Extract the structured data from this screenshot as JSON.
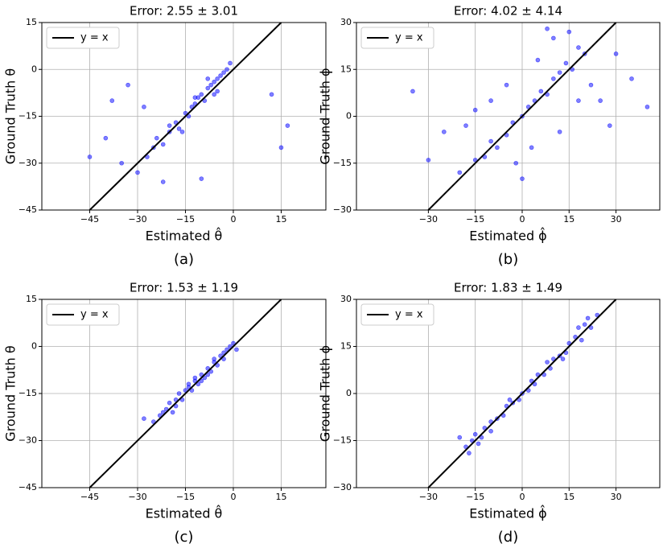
{
  "chart_data": [
    {
      "type": "scatter",
      "title": "Error: 2.55 ± 3.01",
      "xlabel": "Estimated  θ̂",
      "ylabel": "Ground Truth  θ",
      "caption": "(a)",
      "xlim": [
        -60,
        29
      ],
      "ylim": [
        -45,
        15
      ],
      "grid": true,
      "legend": "upper left",
      "xticks": [
        {
          "value": -45,
          "label": "−45"
        },
        {
          "value": -30,
          "label": "−30"
        },
        {
          "value": -15,
          "label": "−15"
        },
        0,
        15
      ],
      "yticks": [
        {
          "value": -45,
          "label": "−45"
        },
        {
          "value": -30,
          "label": "−30"
        },
        {
          "value": -15,
          "label": "−15"
        },
        0,
        15
      ],
      "reference_line": {
        "name": "y = x",
        "color": "#000000"
      },
      "points": {
        "color": "#0000ff",
        "x": [
          -25,
          -22,
          -20,
          -18,
          -17,
          -15,
          -14,
          -13,
          -12,
          -11,
          -10,
          -9,
          -8,
          -7,
          -6,
          -5,
          -4,
          -3,
          -2,
          -1,
          -20,
          -16,
          -12,
          -8,
          -5,
          -27,
          -24,
          -30,
          -35,
          -40,
          -45,
          -38,
          -33,
          -28,
          -22,
          12,
          15,
          17,
          -10,
          -6
        ],
        "y": [
          -25,
          -24,
          -20,
          -17,
          -19,
          -14,
          -15,
          -12,
          -11,
          -9,
          -8,
          -10,
          -6,
          -5,
          -4,
          -3,
          -2,
          -1,
          0,
          2,
          -18,
          -20,
          -9,
          -3,
          -7,
          -28,
          -22,
          -33,
          -30,
          -22,
          -28,
          -10,
          -5,
          -12,
          -36,
          -8,
          -25,
          -18,
          -35,
          -8
        ]
      }
    },
    {
      "type": "scatter",
      "title": "Error: 4.02 ± 4.14",
      "xlabel": "Estimated  ϕ̂",
      "ylabel": "Ground Truth  ϕ",
      "caption": "(b)",
      "xlim": [
        -53,
        44
      ],
      "ylim": [
        -30,
        30
      ],
      "grid": true,
      "legend": "upper left",
      "xticks": [
        {
          "value": -30,
          "label": "−30"
        },
        {
          "value": -15,
          "label": "−15"
        },
        0,
        15,
        30
      ],
      "yticks": [
        {
          "value": -30,
          "label": "−30"
        },
        {
          "value": -15,
          "label": "−15"
        },
        0,
        15,
        30
      ],
      "reference_line": {
        "name": "y = x",
        "color": "#000000"
      },
      "points": {
        "color": "#0000ff",
        "x": [
          -20,
          -15,
          -12,
          -10,
          -8,
          -5,
          -3,
          0,
          2,
          4,
          6,
          8,
          10,
          12,
          14,
          16,
          18,
          20,
          -25,
          -18,
          -10,
          -5,
          5,
          10,
          15,
          22,
          25,
          30,
          35,
          40,
          -35,
          -30,
          8,
          12,
          -2,
          3,
          18,
          28,
          -15,
          0
        ],
        "y": [
          -18,
          -14,
          -13,
          -8,
          -10,
          -6,
          -2,
          0,
          3,
          5,
          8,
          7,
          12,
          14,
          17,
          15,
          22,
          20,
          -5,
          -3,
          5,
          10,
          18,
          25,
          27,
          10,
          5,
          20,
          12,
          3,
          8,
          -14,
          28,
          -5,
          -15,
          -10,
          5,
          -3,
          2,
          -20
        ]
      }
    },
    {
      "type": "scatter",
      "title": "Error: 1.53 ± 1.19",
      "xlabel": "Estimated  θ̂",
      "ylabel": "Ground Truth  θ",
      "caption": "(c)",
      "xlim": [
        -60,
        29
      ],
      "ylim": [
        -45,
        15
      ],
      "grid": true,
      "legend": "upper left",
      "xticks": [
        {
          "value": -45,
          "label": "−45"
        },
        {
          "value": -30,
          "label": "−30"
        },
        {
          "value": -15,
          "label": "−15"
        },
        0,
        15
      ],
      "yticks": [
        {
          "value": -45,
          "label": "−45"
        },
        {
          "value": -30,
          "label": "−30"
        },
        {
          "value": -15,
          "label": "−15"
        },
        0,
        15
      ],
      "reference_line": {
        "name": "y = x",
        "color": "#000000"
      },
      "points": {
        "color": "#0000ff",
        "x": [
          -28,
          -25,
          -23,
          -21,
          -20,
          -19,
          -18,
          -17,
          -16,
          -15,
          -14,
          -13,
          -12,
          -11,
          -10,
          -9,
          -8,
          -7,
          -6,
          -5,
          -4,
          -3,
          -2,
          -1,
          0,
          1,
          -22,
          -18,
          -14,
          -10,
          -6,
          -3,
          -12,
          -8
        ],
        "y": [
          -23,
          -24,
          -22,
          -20,
          -18,
          -21,
          -17,
          -15,
          -17,
          -14,
          -13,
          -14,
          -11,
          -12,
          -9,
          -10,
          -7,
          -8,
          -5,
          -6,
          -3,
          -2,
          -1,
          0,
          1,
          -1,
          -21,
          -19,
          -12,
          -11,
          -4,
          -4,
          -10,
          -9
        ]
      }
    },
    {
      "type": "scatter",
      "title": "Error: 1.83 ± 1.49",
      "xlabel": "Estimated  ϕ̂",
      "ylabel": "Ground Truth  ϕ",
      "caption": "(d)",
      "xlim": [
        -53,
        44
      ],
      "ylim": [
        -30,
        30
      ],
      "grid": true,
      "legend": "upper left",
      "xticks": [
        {
          "value": -30,
          "label": "−30"
        },
        {
          "value": -15,
          "label": "−15"
        },
        0,
        15,
        30
      ],
      "yticks": [
        {
          "value": -30,
          "label": "−30"
        },
        {
          "value": -15,
          "label": "−15"
        },
        0,
        15,
        30
      ],
      "reference_line": {
        "name": "y = x",
        "color": "#000000"
      },
      "points": {
        "color": "#0000ff",
        "x": [
          -20,
          -18,
          -16,
          -15,
          -13,
          -12,
          -10,
          -8,
          -6,
          -5,
          -3,
          -1,
          0,
          2,
          4,
          5,
          7,
          9,
          10,
          12,
          14,
          15,
          17,
          19,
          20,
          22,
          24,
          -17,
          -10,
          -4,
          3,
          8,
          13,
          18,
          21,
          -14
        ],
        "y": [
          -14,
          -17,
          -15,
          -13,
          -14,
          -11,
          -9,
          -8,
          -7,
          -4,
          -3,
          -2,
          0,
          1,
          3,
          6,
          6,
          8,
          11,
          12,
          13,
          16,
          18,
          17,
          22,
          21,
          25,
          -19,
          -12,
          -2,
          4,
          10,
          11,
          21,
          24,
          -16
        ]
      }
    }
  ]
}
